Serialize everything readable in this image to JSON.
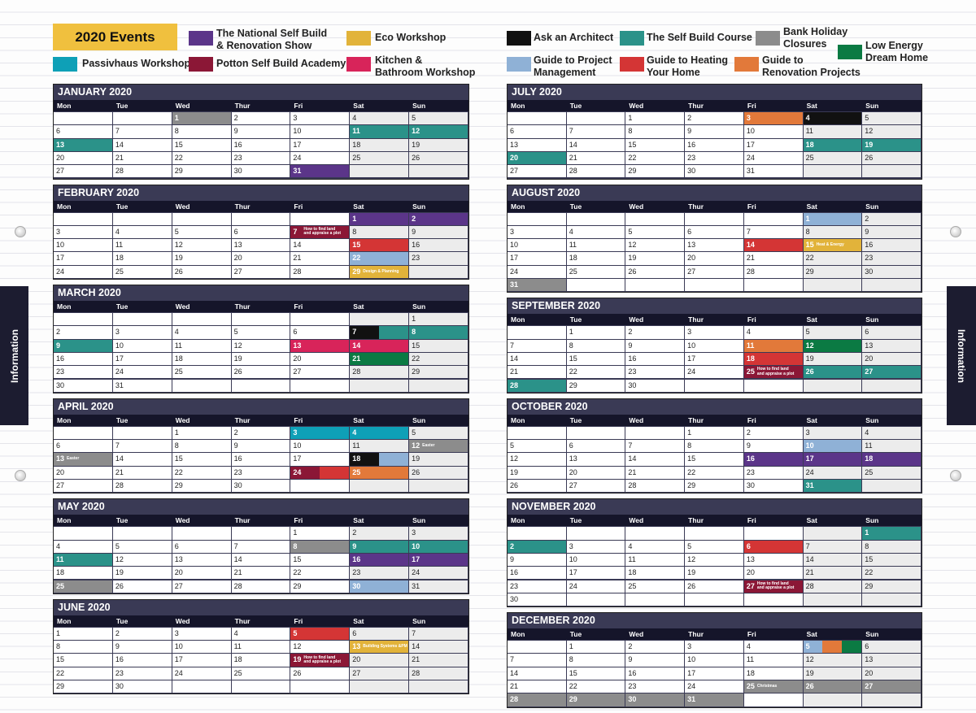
{
  "legend_title": "2020 Events",
  "legend": [
    {
      "label": "The National Self Build\n& Renovation Show",
      "color": "#5b3589"
    },
    {
      "label": "Eco Workshop",
      "color": "#e2b33a"
    },
    {
      "label": "Ask an Architect",
      "color": "#111111"
    },
    {
      "label": "The Self Build Course",
      "color": "#2b9289"
    },
    {
      "label": "Bank Holiday\nClosures",
      "color": "#8c8c8c"
    },
    {
      "label": "Low Energy\nDream Home",
      "color": "#0b7a43"
    },
    {
      "label": "Passivhaus Workshop",
      "color": "#0ea0b7"
    },
    {
      "label": "Potton Self Build Academy",
      "color": "#8b1736"
    },
    {
      "label": "Kitchen &\nBathroom Workshop",
      "color": "#d8245a"
    },
    {
      "label": "Guide to Project\nManagement",
      "color": "#8fb1d6"
    },
    {
      "label": "Guide to Heating\nYour Home",
      "color": "#d43535"
    },
    {
      "label": "Guide to\nRenovation Projects",
      "color": "#e2793a"
    }
  ],
  "side_tabs": [
    "Information",
    "Information"
  ],
  "weekdays": [
    "Mon",
    "Tue",
    "Wed",
    "Thur",
    "Fri",
    "Sat",
    "Sun"
  ],
  "months": [
    {
      "title": "JANUARY 2020",
      "weeks": [
        [
          null,
          null,
          {
            "day": 1,
            "colors": [
              "#8c8c8c"
            ]
          },
          2,
          3,
          4,
          5
        ],
        [
          6,
          7,
          8,
          9,
          10,
          {
            "day": 11,
            "colors": [
              "#2b9289"
            ]
          },
          {
            "day": 12,
            "colors": [
              "#2b9289"
            ]
          }
        ],
        [
          {
            "day": 13,
            "colors": [
              "#2b9289"
            ]
          },
          14,
          15,
          16,
          17,
          18,
          19
        ],
        [
          20,
          21,
          22,
          23,
          24,
          25,
          26
        ],
        [
          27,
          28,
          29,
          30,
          {
            "day": 31,
            "colors": [
              "#5b3589"
            ]
          },
          null,
          null
        ]
      ]
    },
    {
      "title": "FEBRUARY 2020",
      "weeks": [
        [
          null,
          null,
          null,
          null,
          null,
          {
            "day": 1,
            "colors": [
              "#5b3589"
            ]
          },
          {
            "day": 2,
            "colors": [
              "#5b3589"
            ]
          }
        ],
        [
          3,
          4,
          5,
          6,
          {
            "day": 7,
            "colors": [
              "#8b1736"
            ],
            "note": "How to find land\nand appraise a plot"
          },
          8,
          9
        ],
        [
          10,
          11,
          12,
          13,
          14,
          {
            "day": 15,
            "colors": [
              "#d43535"
            ]
          },
          16
        ],
        [
          17,
          18,
          19,
          20,
          21,
          {
            "day": 22,
            "colors": [
              "#8fb1d6"
            ]
          },
          23
        ],
        [
          24,
          25,
          26,
          27,
          28,
          {
            "day": 29,
            "colors": [
              "#e2b33a"
            ],
            "note": "Design & Planning"
          },
          null
        ]
      ]
    },
    {
      "title": "MARCH 2020",
      "weeks": [
        [
          null,
          null,
          null,
          null,
          null,
          null,
          1
        ],
        [
          2,
          3,
          4,
          5,
          6,
          {
            "day": 7,
            "colors": [
              "#111111",
              "#2b9289"
            ]
          },
          {
            "day": 8,
            "colors": [
              "#2b9289"
            ]
          }
        ],
        [
          {
            "day": 9,
            "colors": [
              "#2b9289"
            ]
          },
          10,
          11,
          12,
          {
            "day": 13,
            "colors": [
              "#d8245a"
            ]
          },
          {
            "day": 14,
            "colors": [
              "#d8245a"
            ]
          },
          15
        ],
        [
          16,
          17,
          18,
          19,
          20,
          {
            "day": 21,
            "colors": [
              "#0b7a43"
            ]
          },
          22
        ],
        [
          23,
          24,
          25,
          26,
          27,
          28,
          29
        ],
        [
          30,
          31,
          null,
          null,
          null,
          null,
          null
        ]
      ]
    },
    {
      "title": "APRIL 2020",
      "weeks": [
        [
          null,
          null,
          1,
          2,
          {
            "day": 3,
            "colors": [
              "#0ea0b7"
            ]
          },
          {
            "day": 4,
            "colors": [
              "#0ea0b7"
            ]
          },
          5
        ],
        [
          6,
          7,
          8,
          9,
          10,
          11,
          {
            "day": 12,
            "colors": [
              "#8c8c8c"
            ],
            "note": "Easter"
          }
        ],
        [
          {
            "day": 13,
            "colors": [
              "#8c8c8c"
            ],
            "note": "Easter"
          },
          14,
          15,
          16,
          17,
          {
            "day": 18,
            "colors": [
              "#111111",
              "#8fb1d6"
            ]
          },
          19
        ],
        [
          20,
          21,
          22,
          23,
          {
            "day": 24,
            "colors": [
              "#8b1736",
              "#d43535"
            ]
          },
          {
            "day": 25,
            "colors": [
              "#e2793a"
            ]
          },
          26
        ],
        [
          27,
          28,
          29,
          30,
          null,
          null,
          null
        ]
      ]
    },
    {
      "title": "MAY 2020",
      "weeks": [
        [
          null,
          null,
          null,
          null,
          1,
          2,
          3
        ],
        [
          4,
          5,
          6,
          7,
          {
            "day": 8,
            "colors": [
              "#8c8c8c"
            ]
          },
          {
            "day": 9,
            "colors": [
              "#2b9289"
            ]
          },
          {
            "day": 10,
            "colors": [
              "#2b9289"
            ]
          }
        ],
        [
          {
            "day": 11,
            "colors": [
              "#2b9289"
            ]
          },
          12,
          13,
          14,
          15,
          {
            "day": 16,
            "colors": [
              "#5b3589"
            ]
          },
          {
            "day": 17,
            "colors": [
              "#5b3589"
            ]
          }
        ],
        [
          18,
          19,
          20,
          21,
          22,
          23,
          24
        ],
        [
          {
            "day": 25,
            "colors": [
              "#8c8c8c"
            ]
          },
          26,
          27,
          28,
          29,
          {
            "day": 30,
            "colors": [
              "#8fb1d6"
            ]
          },
          31
        ]
      ]
    },
    {
      "title": "JUNE 2020",
      "weeks": [
        [
          1,
          2,
          3,
          4,
          {
            "day": 5,
            "colors": [
              "#d43535"
            ]
          },
          6,
          7
        ],
        [
          8,
          9,
          10,
          11,
          12,
          {
            "day": 13,
            "colors": [
              "#e2b33a"
            ],
            "note": "Building Systems &PM"
          },
          14
        ],
        [
          15,
          16,
          17,
          18,
          {
            "day": 19,
            "colors": [
              "#8b1736"
            ],
            "note": "How to find land\nand appraise a plot"
          },
          20,
          21
        ],
        [
          22,
          23,
          24,
          25,
          26,
          27,
          28
        ],
        [
          29,
          30,
          null,
          null,
          null,
          null,
          null
        ]
      ]
    },
    {
      "title": "JULY 2020",
      "weeks": [
        [
          null,
          null,
          1,
          2,
          {
            "day": 3,
            "colors": [
              "#e2793a"
            ]
          },
          {
            "day": 4,
            "colors": [
              "#111111"
            ]
          },
          5
        ],
        [
          6,
          7,
          8,
          9,
          10,
          11,
          12
        ],
        [
          13,
          14,
          15,
          16,
          17,
          {
            "day": 18,
            "colors": [
              "#2b9289"
            ]
          },
          {
            "day": 19,
            "colors": [
              "#2b9289"
            ]
          }
        ],
        [
          {
            "day": 20,
            "colors": [
              "#2b9289"
            ]
          },
          21,
          22,
          23,
          24,
          25,
          26
        ],
        [
          27,
          28,
          29,
          30,
          31,
          null,
          null
        ]
      ]
    },
    {
      "title": "AUGUST 2020",
      "weeks": [
        [
          null,
          null,
          null,
          null,
          null,
          {
            "day": 1,
            "colors": [
              "#8fb1d6"
            ]
          },
          2
        ],
        [
          3,
          4,
          5,
          6,
          7,
          8,
          9
        ],
        [
          10,
          11,
          12,
          13,
          {
            "day": 14,
            "colors": [
              "#d43535"
            ]
          },
          {
            "day": 15,
            "colors": [
              "#e2b33a"
            ],
            "note": "Heat & Energy"
          },
          16
        ],
        [
          17,
          18,
          19,
          20,
          21,
          22,
          23
        ],
        [
          24,
          25,
          26,
          27,
          28,
          29,
          30
        ],
        [
          {
            "day": 31,
            "colors": [
              "#8c8c8c"
            ]
          },
          null,
          null,
          null,
          null,
          null,
          null
        ]
      ]
    },
    {
      "title": "SEPTEMBER 2020",
      "weeks": [
        [
          null,
          1,
          2,
          3,
          4,
          5,
          6
        ],
        [
          7,
          8,
          9,
          10,
          {
            "day": 11,
            "colors": [
              "#e2793a"
            ]
          },
          {
            "day": 12,
            "colors": [
              "#0b7a43"
            ]
          },
          13
        ],
        [
          14,
          15,
          16,
          17,
          {
            "day": 18,
            "colors": [
              "#d43535"
            ]
          },
          19,
          20
        ],
        [
          21,
          22,
          23,
          24,
          {
            "day": 25,
            "colors": [
              "#8b1736"
            ],
            "note": "How to find land\nand appraise a plot"
          },
          {
            "day": 26,
            "colors": [
              "#2b9289"
            ]
          },
          {
            "day": 27,
            "colors": [
              "#2b9289"
            ]
          }
        ],
        [
          {
            "day": 28,
            "colors": [
              "#2b9289"
            ]
          },
          29,
          30,
          null,
          null,
          null,
          null
        ]
      ]
    },
    {
      "title": "OCTOBER 2020",
      "weeks": [
        [
          null,
          null,
          null,
          1,
          2,
          3,
          4
        ],
        [
          5,
          6,
          7,
          8,
          9,
          {
            "day": 10,
            "colors": [
              "#8fb1d6"
            ]
          },
          11
        ],
        [
          12,
          13,
          14,
          15,
          {
            "day": 16,
            "colors": [
              "#5b3589"
            ]
          },
          {
            "day": 17,
            "colors": [
              "#5b3589"
            ]
          },
          {
            "day": 18,
            "colors": [
              "#5b3589"
            ]
          }
        ],
        [
          19,
          20,
          21,
          22,
          23,
          24,
          25
        ],
        [
          26,
          27,
          28,
          29,
          30,
          {
            "day": 31,
            "colors": [
              "#2b9289"
            ]
          },
          null
        ]
      ]
    },
    {
      "title": "NOVEMBER 2020",
      "weeks": [
        [
          null,
          null,
          null,
          null,
          null,
          null,
          {
            "day": 1,
            "colors": [
              "#2b9289"
            ]
          }
        ],
        [
          {
            "day": 2,
            "colors": [
              "#2b9289"
            ]
          },
          3,
          4,
          5,
          {
            "day": 6,
            "colors": [
              "#d43535"
            ]
          },
          7,
          8
        ],
        [
          9,
          10,
          11,
          12,
          13,
          14,
          15
        ],
        [
          16,
          17,
          18,
          19,
          20,
          21,
          22
        ],
        [
          23,
          24,
          25,
          26,
          {
            "day": 27,
            "colors": [
              "#8b1736"
            ],
            "note": "How to find land\nand appraise a plot"
          },
          28,
          29
        ],
        [
          30,
          null,
          null,
          null,
          null,
          null,
          null
        ]
      ]
    },
    {
      "title": "DECEMBER 2020",
      "weeks": [
        [
          null,
          1,
          2,
          3,
          4,
          {
            "day": 5,
            "colors": [
              "#8fb1d6",
              "#e2793a",
              "#0b7a43"
            ]
          },
          6
        ],
        [
          7,
          8,
          9,
          10,
          11,
          12,
          13
        ],
        [
          14,
          15,
          16,
          17,
          18,
          19,
          20
        ],
        [
          21,
          22,
          23,
          24,
          {
            "day": 25,
            "colors": [
              "#8c8c8c"
            ],
            "note": "Christmas"
          },
          {
            "day": 26,
            "colors": [
              "#8c8c8c"
            ]
          },
          {
            "day": 27,
            "colors": [
              "#8c8c8c"
            ]
          }
        ],
        [
          {
            "day": 28,
            "colors": [
              "#8c8c8c"
            ]
          },
          {
            "day": 29,
            "colors": [
              "#8c8c8c"
            ]
          },
          {
            "day": 30,
            "colors": [
              "#8c8c8c"
            ]
          },
          {
            "day": 31,
            "colors": [
              "#8c8c8c"
            ]
          },
          null,
          null,
          null
        ]
      ]
    }
  ]
}
